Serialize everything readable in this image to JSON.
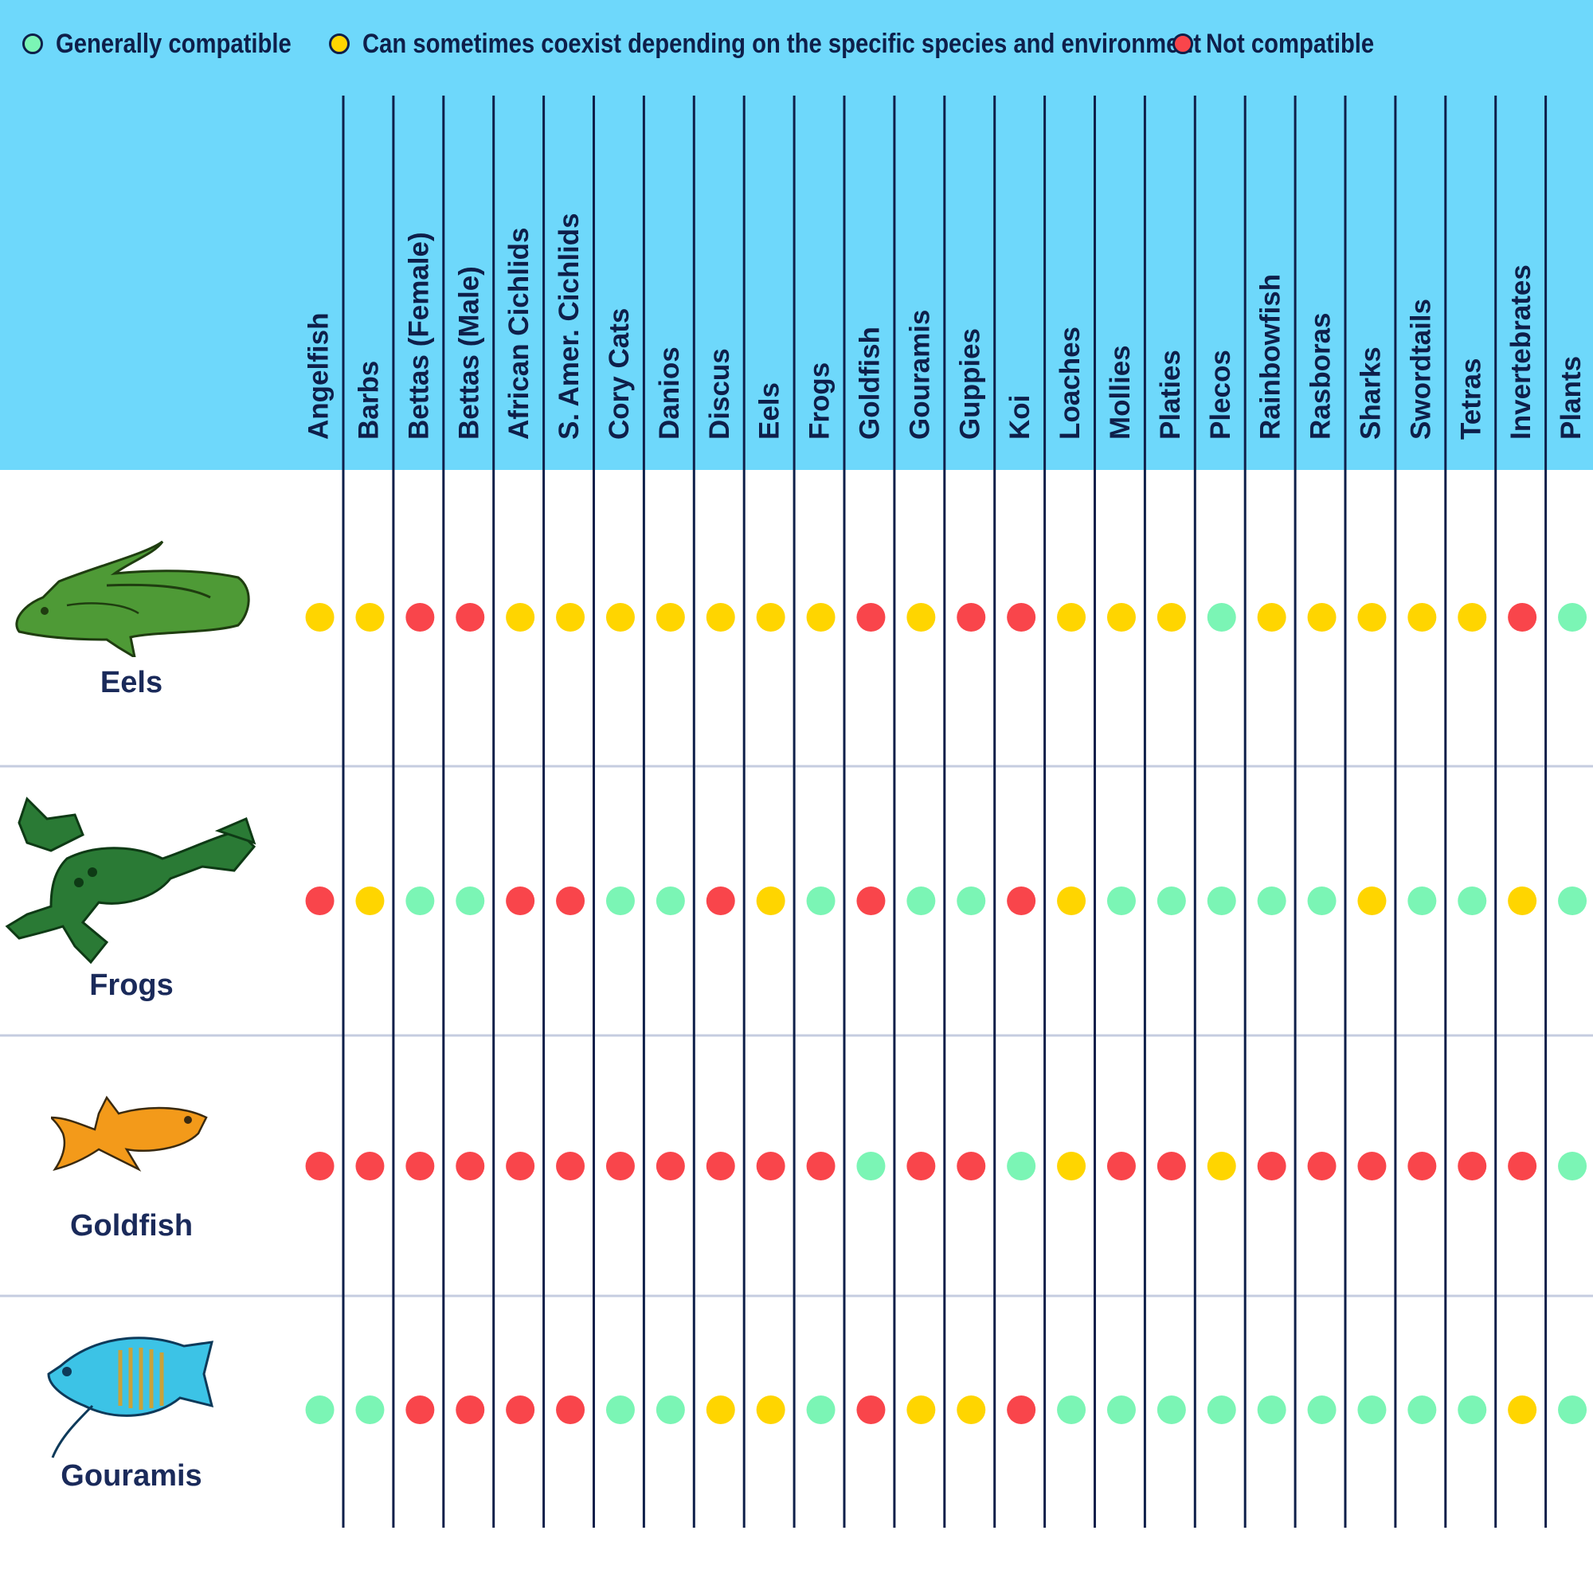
{
  "legend": [
    {
      "label": "Generally compatible",
      "color": "#7bf5b5"
    },
    {
      "label": "Can sometimes coexist depending on the specific species and environment",
      "color": "#ffd500"
    },
    {
      "label": "Not compatible",
      "color": "#f9454b"
    }
  ],
  "chart_data": {
    "type": "table",
    "columns": [
      "Angelfish",
      "Barbs",
      "Bettas (Female)",
      "Bettas (Male)",
      "African Cichlids",
      "S. Amer. Cichlids",
      "Cory Cats",
      "Danios",
      "Discus",
      "Eels",
      "Frogs",
      "Goldfish",
      "Gouramis",
      "Guppies",
      "Koi",
      "Loaches",
      "Mollies",
      "Platies",
      "Plecos",
      "Rainbowfish",
      "Rasboras",
      "Sharks",
      "Swordtails",
      "Tetras",
      "Invertebrates",
      "Plants"
    ],
    "rows": [
      {
        "label": "Eels",
        "icon": "eel-icon",
        "values": [
          "Y",
          "Y",
          "R",
          "R",
          "Y",
          "Y",
          "Y",
          "Y",
          "Y",
          "Y",
          "Y",
          "R",
          "Y",
          "R",
          "R",
          "Y",
          "Y",
          "Y",
          "G",
          "Y",
          "Y",
          "Y",
          "Y",
          "Y",
          "R",
          "G"
        ]
      },
      {
        "label": "Frogs",
        "icon": "frog-icon",
        "values": [
          "R",
          "Y",
          "G",
          "G",
          "R",
          "R",
          "G",
          "G",
          "R",
          "Y",
          "G",
          "R",
          "G",
          "G",
          "R",
          "Y",
          "G",
          "G",
          "G",
          "G",
          "G",
          "Y",
          "G",
          "G",
          "Y",
          "G"
        ]
      },
      {
        "label": "Goldfish",
        "icon": "goldfish-icon",
        "values": [
          "R",
          "R",
          "R",
          "R",
          "R",
          "R",
          "R",
          "R",
          "R",
          "R",
          "R",
          "G",
          "R",
          "R",
          "G",
          "Y",
          "R",
          "R",
          "Y",
          "R",
          "R",
          "R",
          "R",
          "R",
          "R",
          "G"
        ]
      },
      {
        "label": "Gouramis",
        "icon": "gourami-icon",
        "values": [
          "G",
          "G",
          "R",
          "R",
          "R",
          "R",
          "G",
          "G",
          "Y",
          "Y",
          "G",
          "R",
          "Y",
          "Y",
          "R",
          "G",
          "G",
          "G",
          "G",
          "G",
          "G",
          "G",
          "G",
          "G",
          "Y",
          "G"
        ]
      }
    ],
    "value_key": {
      "G": "Generally compatible",
      "Y": "Can sometimes coexist depending on the specific species and environment",
      "R": "Not compatible"
    },
    "colors": {
      "G": "#7bf5b5",
      "Y": "#ffd500",
      "R": "#f9454b",
      "header_bg": "#6ed8fb",
      "line": "#0e1f4a",
      "row_divider": "#c5cce0"
    }
  }
}
